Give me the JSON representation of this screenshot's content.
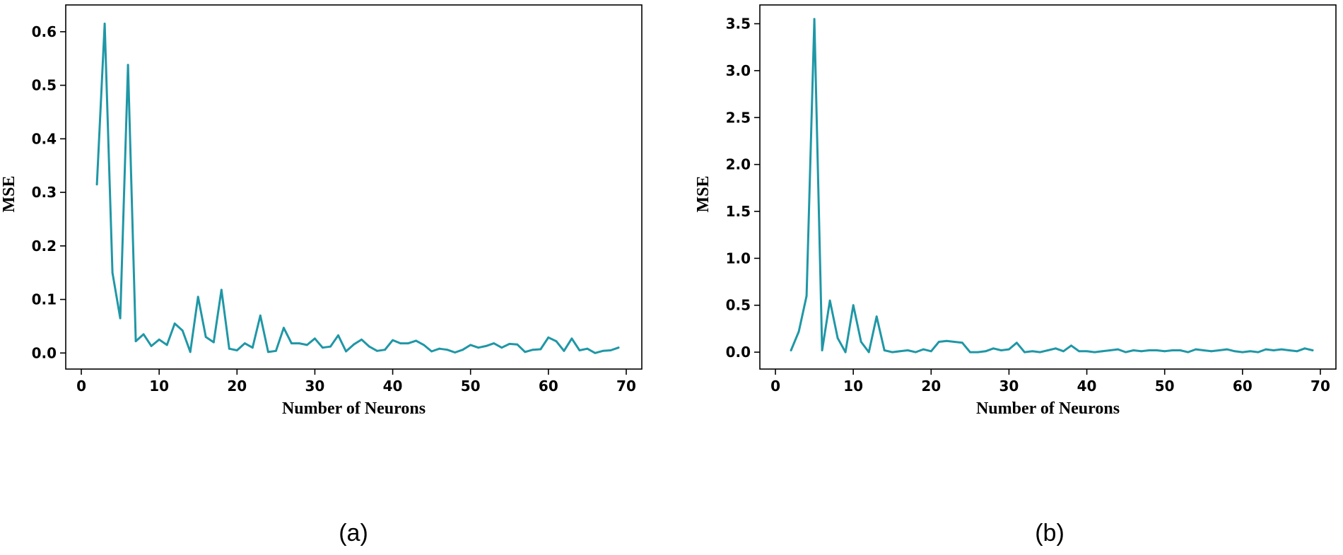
{
  "chart_data": [
    {
      "type": "line",
      "panel_label": "(a)",
      "xlabel": "Number of Neurons",
      "ylabel": "MSE",
      "xlim": [
        -2,
        72
      ],
      "ylim": [
        -0.03,
        0.65
      ],
      "xticks": [
        0,
        10,
        20,
        30,
        40,
        50,
        60,
        70
      ],
      "yticks": [
        0.0,
        0.1,
        0.2,
        0.3,
        0.4,
        0.5,
        0.6
      ],
      "ytick_labels": [
        "0.0",
        "0.1",
        "0.2",
        "0.3",
        "0.4",
        "0.5",
        "0.6"
      ],
      "grid": false,
      "line_color": "#1f97a6",
      "series": [
        {
          "x": [
            2,
            3,
            4,
            5,
            6,
            7,
            8,
            9,
            10,
            11,
            12,
            13,
            14,
            15,
            16,
            17,
            18,
            19,
            20,
            21,
            22,
            23,
            24,
            25,
            26,
            27,
            28,
            29,
            30,
            31,
            32,
            33,
            34,
            35,
            36,
            37,
            38,
            39,
            40,
            41,
            42,
            43,
            44,
            45,
            46,
            47,
            48,
            49,
            50,
            51,
            52,
            53,
            54,
            55,
            56,
            57,
            58,
            59,
            60,
            61,
            62,
            63,
            64,
            65,
            66,
            67,
            68,
            69
          ],
          "values": [
            0.315,
            0.615,
            0.15,
            0.065,
            0.538,
            0.022,
            0.035,
            0.013,
            0.025,
            0.015,
            0.055,
            0.042,
            0.002,
            0.105,
            0.03,
            0.02,
            0.118,
            0.008,
            0.005,
            0.018,
            0.01,
            0.07,
            0.002,
            0.004,
            0.047,
            0.018,
            0.018,
            0.015,
            0.027,
            0.01,
            0.012,
            0.033,
            0.003,
            0.016,
            0.025,
            0.012,
            0.004,
            0.006,
            0.024,
            0.018,
            0.018,
            0.023,
            0.015,
            0.003,
            0.008,
            0.006,
            0.001,
            0.006,
            0.015,
            0.01,
            0.013,
            0.018,
            0.01,
            0.017,
            0.016,
            0.002,
            0.006,
            0.007,
            0.029,
            0.022,
            0.004,
            0.027,
            0.005,
            0.008,
            0.0,
            0.004,
            0.005,
            0.01
          ]
        }
      ]
    },
    {
      "type": "line",
      "panel_label": "(b)",
      "xlabel": "Number of Neurons",
      "ylabel": "MSE",
      "xlim": [
        -2,
        72
      ],
      "ylim": [
        -0.18,
        3.7
      ],
      "xticks": [
        0,
        10,
        20,
        30,
        40,
        50,
        60,
        70
      ],
      "yticks": [
        0.0,
        0.5,
        1.0,
        1.5,
        2.0,
        2.5,
        3.0,
        3.5
      ],
      "ytick_labels": [
        "0.0",
        "0.5",
        "1.0",
        "1.5",
        "2.0",
        "2.5",
        "3.0",
        "3.5"
      ],
      "grid": false,
      "line_color": "#1f97a6",
      "series": [
        {
          "x": [
            2,
            3,
            4,
            5,
            6,
            7,
            8,
            9,
            10,
            11,
            12,
            13,
            14,
            15,
            16,
            17,
            18,
            19,
            20,
            21,
            22,
            23,
            24,
            25,
            26,
            27,
            28,
            29,
            30,
            31,
            32,
            33,
            34,
            35,
            36,
            37,
            38,
            39,
            40,
            41,
            42,
            43,
            44,
            45,
            46,
            47,
            48,
            49,
            50,
            51,
            52,
            53,
            54,
            55,
            56,
            57,
            58,
            59,
            60,
            61,
            62,
            63,
            64,
            65,
            66,
            67,
            68,
            69
          ],
          "values": [
            0.02,
            0.22,
            0.6,
            3.55,
            0.02,
            0.55,
            0.15,
            0.0,
            0.5,
            0.11,
            0.0,
            0.38,
            0.02,
            0.0,
            0.01,
            0.02,
            0.0,
            0.03,
            0.01,
            0.11,
            0.12,
            0.11,
            0.1,
            0.0,
            0.0,
            0.01,
            0.04,
            0.02,
            0.03,
            0.1,
            0.0,
            0.01,
            0.0,
            0.02,
            0.04,
            0.01,
            0.07,
            0.01,
            0.01,
            0.0,
            0.01,
            0.02,
            0.03,
            0.0,
            0.02,
            0.01,
            0.02,
            0.02,
            0.01,
            0.02,
            0.02,
            0.0,
            0.03,
            0.02,
            0.01,
            0.02,
            0.03,
            0.01,
            0.0,
            0.01,
            0.0,
            0.03,
            0.02,
            0.03,
            0.02,
            0.01,
            0.04,
            0.02
          ]
        }
      ]
    }
  ]
}
